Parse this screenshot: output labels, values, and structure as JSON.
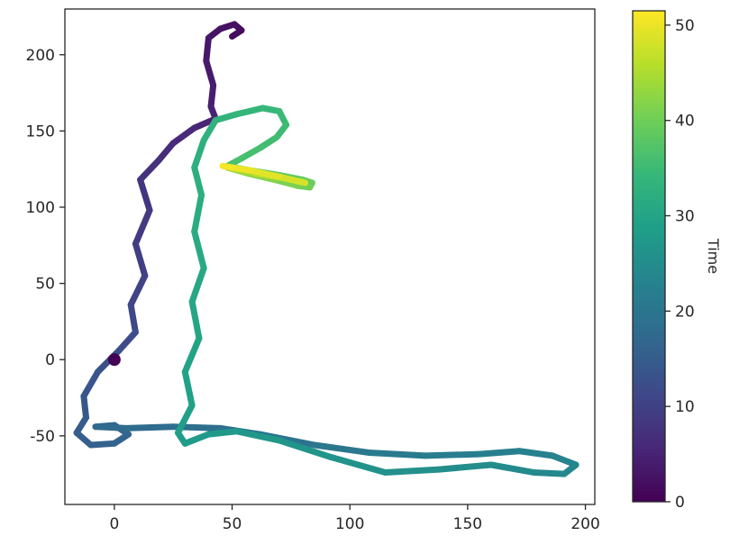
{
  "figure": {
    "background": "#ffffff"
  },
  "chart_data": {
    "type": "line",
    "title": "",
    "xlabel": "",
    "ylabel": "",
    "xlim": [
      -21,
      204
    ],
    "ylim": [
      -95,
      230
    ],
    "xticks": [
      0,
      50,
      100,
      150,
      200
    ],
    "yticks": [
      -50,
      0,
      50,
      100,
      150,
      200
    ],
    "grid": false,
    "colormap": "viridis",
    "colorbar": {
      "label": "Time",
      "ticks": [
        0,
        10,
        20,
        30,
        40,
        50
      ],
      "vmin": 0,
      "vmax": 51.5
    },
    "start_marker": {
      "x": 0,
      "y": 0,
      "t": 0
    },
    "trajectory": {
      "x": [
        50,
        54,
        51,
        45,
        40,
        39,
        42,
        41,
        43,
        34,
        25,
        19,
        11,
        15,
        9,
        13,
        7,
        9,
        2,
        -7,
        -13,
        -12,
        -16,
        -10,
        0,
        6,
        0,
        -8,
        5,
        25,
        45,
        62,
        85,
        108,
        132,
        155,
        172,
        186,
        196,
        191,
        178,
        160,
        138,
        115,
        92,
        70,
        52,
        40,
        30,
        27,
        33,
        30,
        36,
        33,
        38,
        34,
        37,
        34,
        38,
        43,
        52,
        63,
        70,
        73,
        69,
        62,
        54,
        48,
        58,
        70,
        80,
        84,
        83,
        78,
        68,
        57,
        48,
        60,
        72,
        81,
        70,
        58,
        50,
        46
      ],
      "y": [
        212,
        216,
        220,
        217,
        211,
        196,
        180,
        166,
        158,
        152,
        142,
        131,
        118,
        98,
        76,
        55,
        36,
        18,
        6,
        -8,
        -24,
        -38,
        -48,
        -56,
        -55,
        -49,
        -43,
        -44,
        -45,
        -44,
        -45,
        -49,
        -56,
        -61,
        -63,
        -62,
        -60,
        -63,
        -69,
        -75,
        -74,
        -69,
        -72,
        -74,
        -64,
        -53,
        -47,
        -49,
        -55,
        -48,
        -30,
        -8,
        14,
        38,
        60,
        84,
        108,
        126,
        144,
        157,
        161,
        165,
        163,
        154,
        146,
        139,
        132,
        127,
        124,
        121,
        118,
        116,
        113,
        114,
        118,
        122,
        126,
        122,
        119,
        116,
        120,
        124,
        126,
        127
      ],
      "t": [
        1.2,
        1.6,
        2.0,
        2.4,
        2.8,
        3.4,
        4.0,
        4.6,
        5.0,
        5.6,
        6.2,
        6.8,
        7.6,
        8.4,
        9.2,
        10.0,
        10.8,
        11.6,
        12.4,
        13.2,
        14.0,
        14.6,
        15.2,
        15.8,
        16.2,
        16.6,
        17.0,
        17.3,
        17.8,
        18.4,
        19.0,
        19.6,
        20.2,
        20.8,
        21.4,
        22.0,
        22.5,
        23.0,
        23.5,
        24.0,
        24.4,
        24.9,
        25.4,
        25.9,
        26.4,
        26.9,
        27.4,
        27.8,
        28.2,
        28.5,
        29.0,
        29.5,
        30.0,
        30.5,
        31.0,
        31.5,
        32.0,
        32.4,
        32.8,
        33.2,
        33.7,
        34.2,
        34.6,
        35.0,
        35.4,
        35.8,
        36.3,
        36.7,
        37.5,
        38.3,
        39.0,
        39.5,
        40.0,
        40.5,
        41.5,
        42.5,
        43.5,
        45.0,
        46.5,
        47.5,
        48.8,
        49.8,
        50.6,
        51.2
      ]
    }
  },
  "style": {
    "axis_color": "#262626",
    "tick_font_size": 17,
    "label_font_size": 16,
    "line_width": 7,
    "start_marker_radius": 7,
    "viridis_stops": [
      "#440154",
      "#482878",
      "#3e4989",
      "#31688e",
      "#26828e",
      "#1f9e89",
      "#35b779",
      "#6ece58",
      "#b5de2b",
      "#fde725"
    ]
  }
}
